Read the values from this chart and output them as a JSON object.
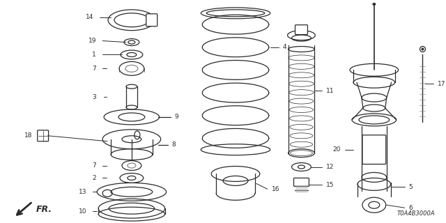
{
  "background_color": "#ffffff",
  "diagram_code": "T0A4B3000A",
  "line_color": "#2a2a2a",
  "gray": "#888888"
}
